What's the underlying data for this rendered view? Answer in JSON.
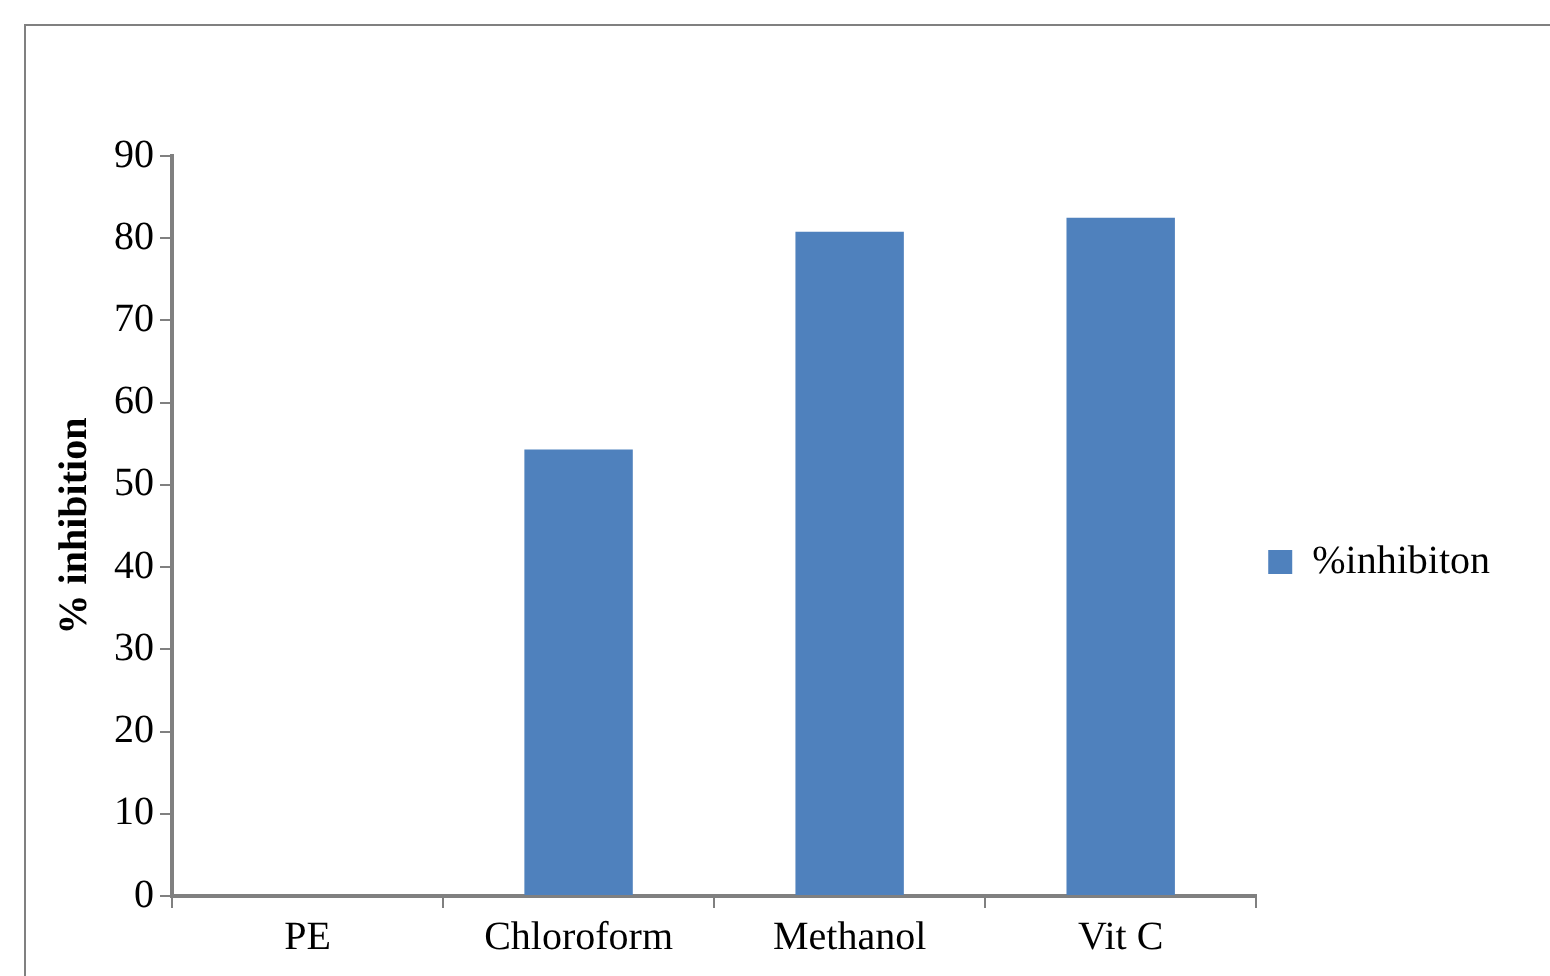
{
  "chart_data": {
    "type": "bar",
    "ylabel": "% inhibition",
    "categories": [
      "PE",
      "Chloroform",
      "Methanol",
      "Vit C"
    ],
    "series": [
      {
        "name": "%inhibiton",
        "color": "#4f81bd",
        "values": [
          0,
          54.3,
          80.8,
          82.5
        ]
      }
    ],
    "ylim": [
      0,
      90
    ],
    "yticks": [
      0,
      10,
      20,
      30,
      40,
      50,
      60,
      70,
      80,
      90
    ],
    "grid": false,
    "legend": "right"
  }
}
